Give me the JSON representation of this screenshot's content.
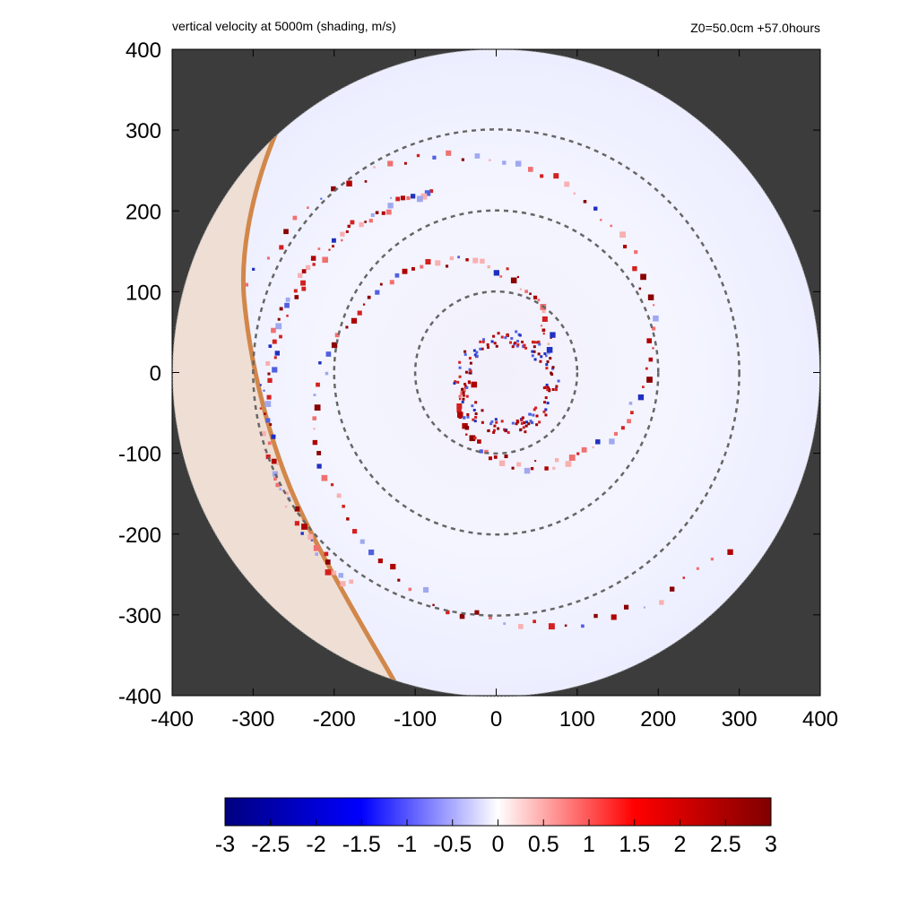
{
  "chart_data": {
    "type": "heatmap",
    "title": "vertical velocity at 5000m (shading, m/s)",
    "info": "Z0=50.0cm  +57.0hours",
    "xlabel": "",
    "ylabel": "",
    "xlim": [
      -400,
      400
    ],
    "ylim": [
      -400,
      400
    ],
    "x_ticks": [
      -400,
      -300,
      -200,
      -100,
      0,
      100,
      200,
      300,
      400
    ],
    "y_ticks": [
      -400,
      -300,
      -200,
      -100,
      0,
      100,
      200,
      300,
      400
    ],
    "x_tick_labels": [
      "-400",
      "-300",
      "-200",
      "-100",
      "0",
      "100",
      "200",
      "300",
      "400"
    ],
    "y_tick_labels": [
      "400",
      "300",
      "200",
      "100",
      "0",
      "-100",
      "-200",
      "-300",
      "-400"
    ],
    "domain_radius": 400,
    "range_rings": [
      100,
      200,
      300
    ],
    "colorbar": {
      "min": -3,
      "max": 3,
      "ticks": [
        -3,
        -2.5,
        -2,
        -1.5,
        -1,
        -0.5,
        0,
        0.5,
        1,
        1.5,
        2,
        2.5,
        3
      ],
      "tick_labels": [
        "-3",
        "-2.5",
        "-2",
        "-1.5",
        "-1",
        "-0.5",
        "0",
        "0.5",
        "1",
        "1.5",
        "2",
        "2.5",
        "3"
      ],
      "colors": [
        "#000080",
        "#0000ff",
        "#ffffff",
        "#ff0000",
        "#800000"
      ]
    },
    "background_color": "#3c3c3c",
    "coast_color": "#d2874a"
  }
}
